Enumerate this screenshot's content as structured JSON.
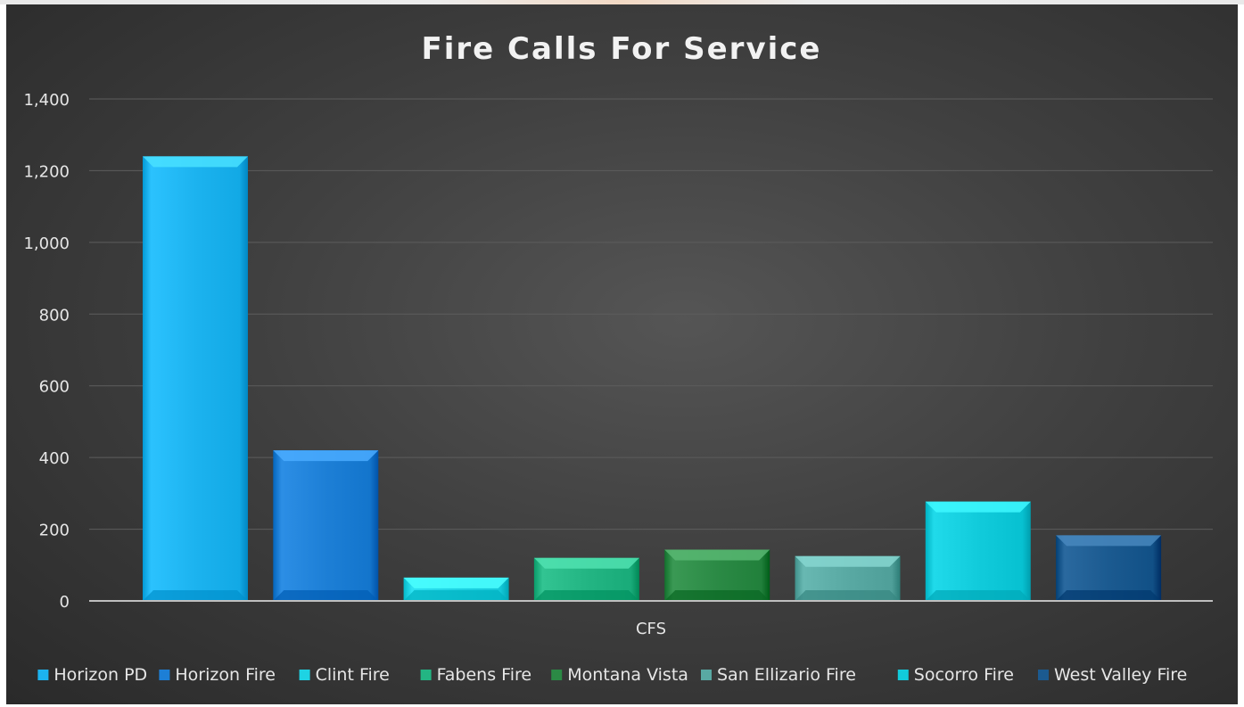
{
  "chart_data": {
    "type": "bar",
    "title": "Fire Calls For Service",
    "xlabel": "",
    "ylabel": "",
    "categories": [
      "CFS"
    ],
    "ylim": [
      0,
      1400
    ],
    "yticks": [
      0,
      200,
      400,
      600,
      800,
      1000,
      1200,
      1400
    ],
    "ytick_labels": [
      "0",
      "200",
      "400",
      "600",
      "800",
      "1,000",
      "1,200",
      "1,400"
    ],
    "grid": true,
    "legend_position": "bottom",
    "series": [
      {
        "name": "Horizon PD",
        "values": [
          1240
        ],
        "color": "#1cb3ef"
      },
      {
        "name": "Horizon Fire",
        "values": [
          420
        ],
        "color": "#1d7fd6"
      },
      {
        "name": "Clint Fire",
        "values": [
          65
        ],
        "color": "#1ed3e3"
      },
      {
        "name": "Fabens Fire",
        "values": [
          120
        ],
        "color": "#23b583"
      },
      {
        "name": "Montana Vista",
        "values": [
          143
        ],
        "color": "#2b8a45"
      },
      {
        "name": "San Ellizario Fire",
        "values": [
          125
        ],
        "color": "#59a9a3"
      },
      {
        "name": "Socorro Fire",
        "values": [
          277
        ],
        "color": "#11cbdb"
      },
      {
        "name": "West Valley Fire",
        "values": [
          183
        ],
        "color": "#1b5a90"
      }
    ]
  }
}
